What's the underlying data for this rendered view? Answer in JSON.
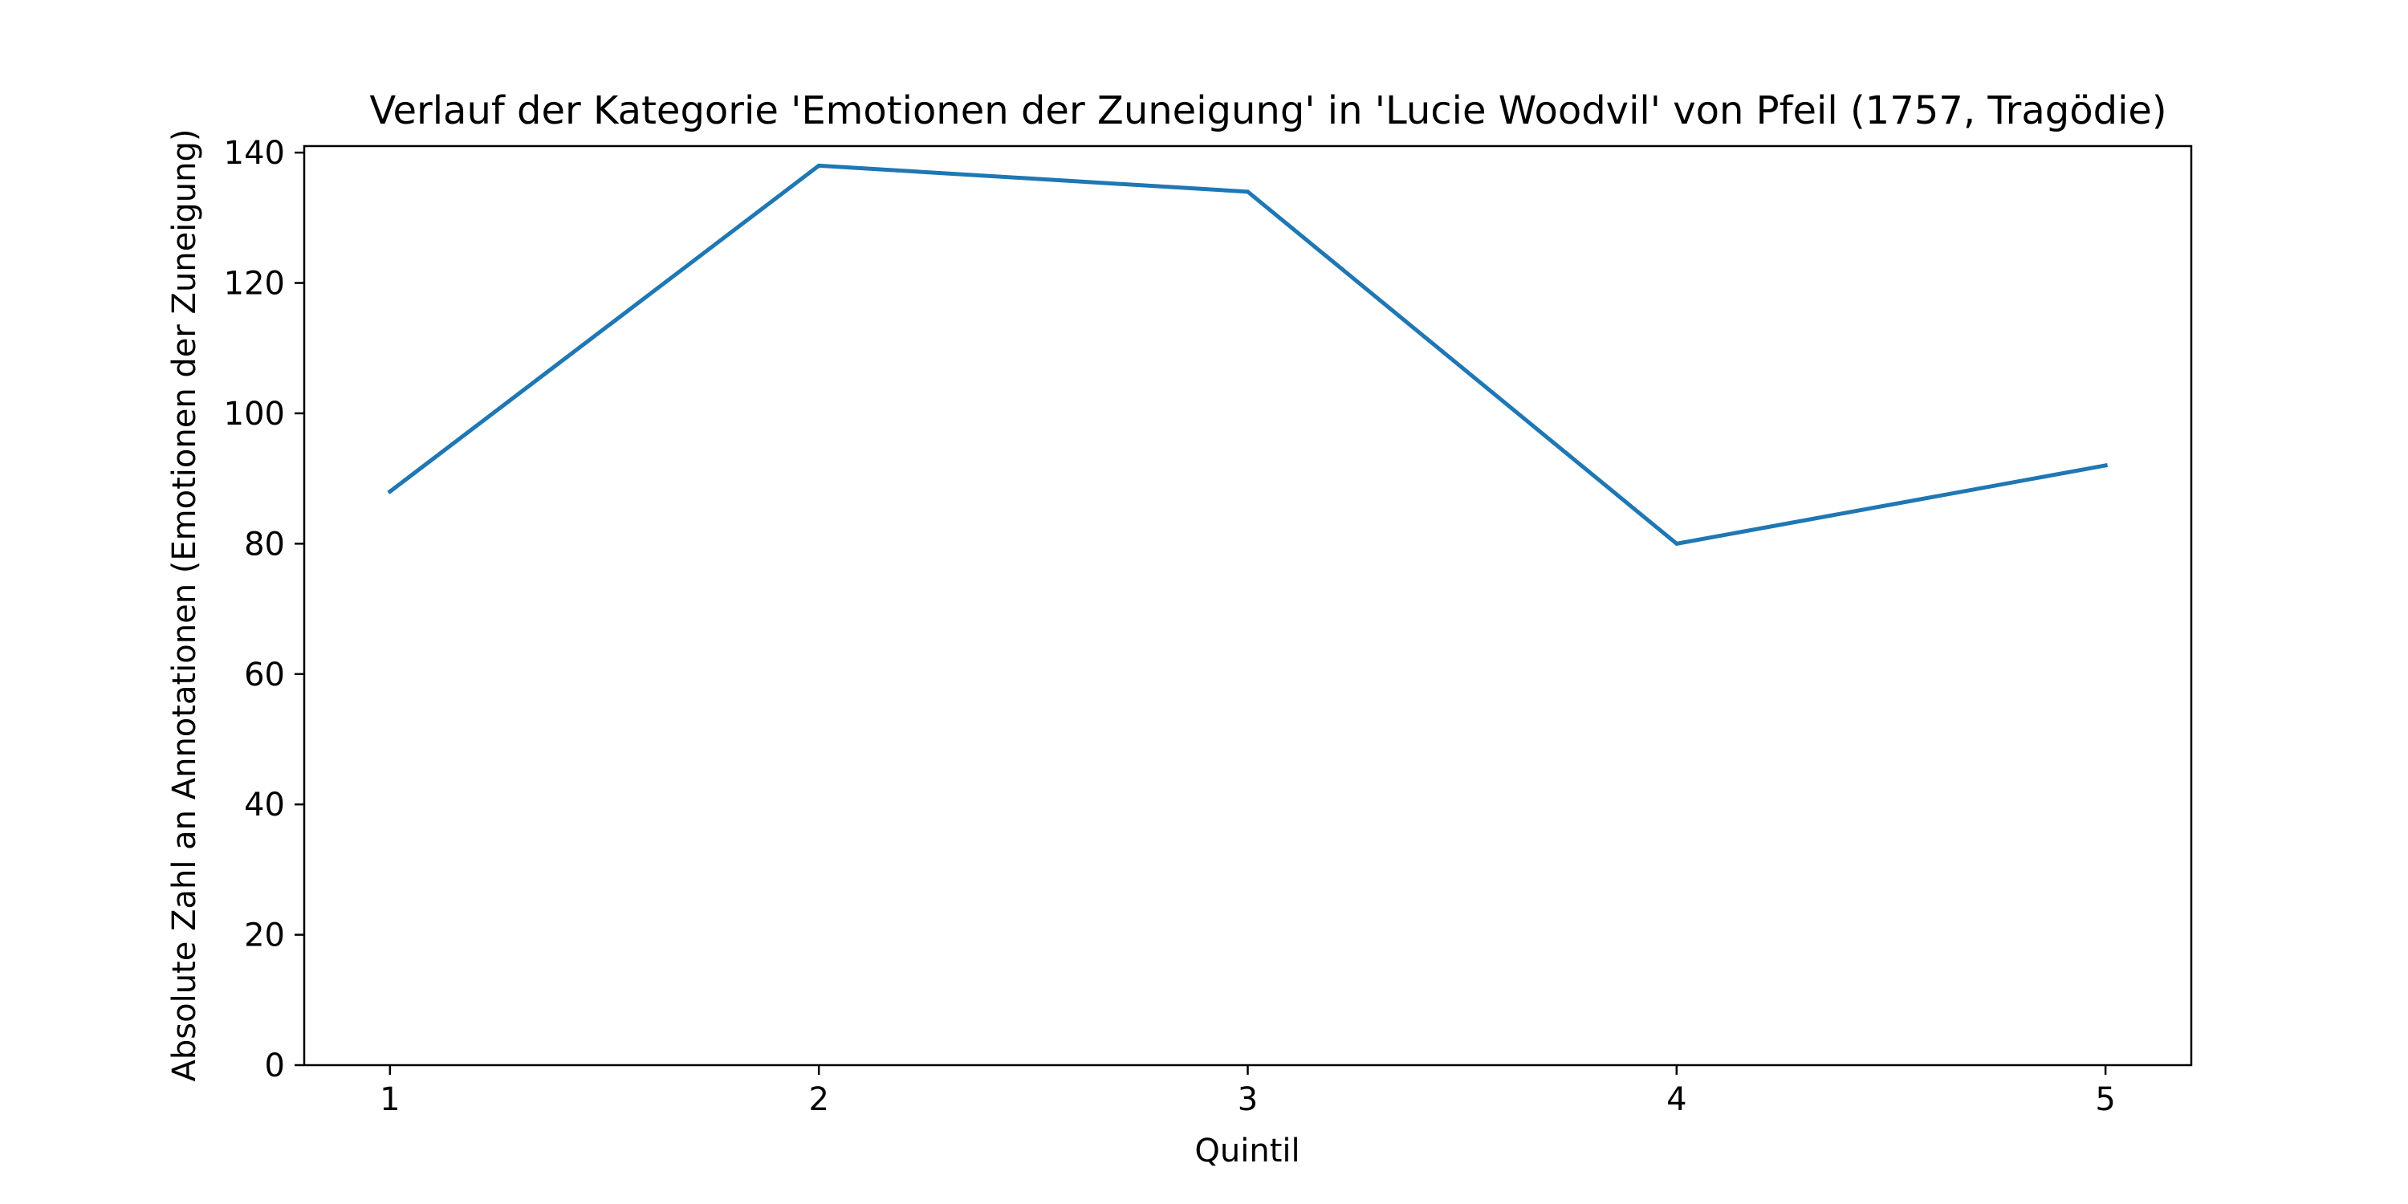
{
  "chart_data": {
    "type": "line",
    "title": "Verlauf der Kategorie 'Emotionen der Zuneigung' in 'Lucie Woodvil' von Pfeil (1757, Tragödie)",
    "xlabel": "Quintil",
    "ylabel": "Absolute Zahl an Annotationen (Emotionen der Zuneigung)",
    "x": [
      1,
      2,
      3,
      4,
      5
    ],
    "series": [
      {
        "values": [
          88,
          138,
          134,
          80,
          92
        ],
        "color": "#1f77b4"
      }
    ],
    "xticks": [
      "1",
      "2",
      "3",
      "4",
      "5"
    ],
    "yticks": [
      "0",
      "20",
      "40",
      "60",
      "80",
      "100",
      "120",
      "140"
    ],
    "xlim": [
      0.8,
      5.2
    ],
    "ylim": [
      0,
      141
    ],
    "grid": false,
    "legend": "none"
  }
}
